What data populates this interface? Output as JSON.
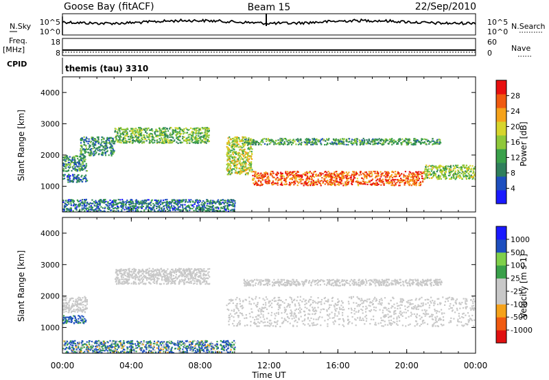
{
  "header": {
    "station": "Goose Bay (fitACF)",
    "beam": "Beam 15",
    "date": "22/Sep/2010",
    "cpid_label": "CPID",
    "cpid_value": "themis (tau) 3310"
  },
  "strip": {
    "nsky_label": "N.Sky",
    "nsearch_label": "N.Search",
    "nsky_ticks": [
      "10^5",
      "10^0"
    ],
    "nsearch_ticks": [
      "10^5",
      "10^0"
    ],
    "freq_label_1": "Freq.",
    "freq_label_2": "[MHz]",
    "freq_ticks": [
      "18",
      "8"
    ],
    "nave_label": "Nave",
    "nave_ticks": [
      "60",
      "0"
    ]
  },
  "colors": {
    "power_scale": [
      "#1a1aff",
      "#1e4fbf",
      "#2f7f5c",
      "#3aa04a",
      "#8fc83a",
      "#d7d52c",
      "#f5a21a",
      "#f05a10",
      "#e81010"
    ],
    "velocity_scale": [
      "#e01010",
      "#f05a10",
      "#f5a21a",
      "#c8c8c8",
      "#c8c8c8",
      "#3aa04a",
      "#7fd04a",
      "#1e4fbf",
      "#1a1aff"
    ],
    "ground_scatter": "#c8c8c8"
  },
  "chart_data": [
    {
      "type": "heatmap",
      "title": "",
      "xlabel": "Time UT",
      "ylabel": "Slant Range [km]",
      "x_range": [
        "00:00",
        "24:00"
      ],
      "x_ticks": [
        "00:00",
        "04:00",
        "08:00",
        "12:00",
        "16:00",
        "20:00",
        "00:00"
      ],
      "y_range": [
        180,
        4500
      ],
      "y_ticks": [
        1000,
        2000,
        3000,
        4000
      ],
      "colorbar": {
        "label": "Power [dB]",
        "range": [
          0,
          32
        ],
        "ticks": [
          4,
          8,
          12,
          16,
          20,
          24,
          28
        ]
      },
      "echo_regions": [
        {
          "t_start": 0.0,
          "t_end": 1.4,
          "r_min": 1500,
          "r_max": 2000,
          "level_db": 10
        },
        {
          "t_start": 0.0,
          "t_end": 1.4,
          "r_min": 1150,
          "r_max": 1400,
          "level_db": 8
        },
        {
          "t_start": 1.0,
          "t_end": 3.0,
          "r_min": 2000,
          "r_max": 2600,
          "level_db": 10
        },
        {
          "t_start": 3.0,
          "t_end": 8.5,
          "r_min": 2400,
          "r_max": 2900,
          "level_db": 14
        },
        {
          "t_start": 9.5,
          "t_end": 11.0,
          "r_min": 1400,
          "r_max": 2600,
          "level_db": 18
        },
        {
          "t_start": 11.0,
          "t_end": 21.0,
          "r_min": 1050,
          "r_max": 1500,
          "level_db": 27
        },
        {
          "t_start": 21.0,
          "t_end": 24.0,
          "r_min": 1250,
          "r_max": 1700,
          "level_db": 16
        },
        {
          "t_start": 10.5,
          "t_end": 22.0,
          "r_min": 2350,
          "r_max": 2550,
          "level_db": 12
        },
        {
          "t_start": 0.0,
          "t_end": 10.0,
          "r_min": 200,
          "r_max": 600,
          "level_db": 8
        }
      ]
    },
    {
      "type": "heatmap",
      "title": "",
      "xlabel": "Time UT",
      "ylabel": "Slant Range [km]",
      "x_range": [
        "00:00",
        "24:00"
      ],
      "x_ticks": [
        "00:00",
        "04:00",
        "08:00",
        "12:00",
        "16:00",
        "20:00",
        "00:00"
      ],
      "y_range": [
        180,
        4500
      ],
      "y_ticks": [
        1000,
        2000,
        3000,
        4000
      ],
      "colorbar": {
        "label": "Velocity [m s-1]",
        "labels": [
          "1000",
          "500",
          "100",
          "25",
          "-25",
          "-100",
          "-500",
          "-1000"
        ]
      },
      "echo_regions": [
        {
          "t_start": 0.0,
          "t_end": 1.4,
          "r_min": 1500,
          "r_max": 2000,
          "velocity": 0
        },
        {
          "t_start": 0.0,
          "t_end": 1.4,
          "r_min": 1150,
          "r_max": 1400,
          "velocity": 150
        },
        {
          "t_start": 3.0,
          "t_end": 8.5,
          "r_min": 2400,
          "r_max": 2900,
          "velocity": 0
        },
        {
          "t_start": 9.5,
          "t_end": 24.0,
          "r_min": 1050,
          "r_max": 2000,
          "velocity": 0
        },
        {
          "t_start": 10.5,
          "t_end": 22.0,
          "r_min": 2350,
          "r_max": 2550,
          "velocity": 0
        },
        {
          "t_start": 0.0,
          "t_end": 10.0,
          "r_min": 200,
          "r_max": 600,
          "velocity": 80
        }
      ]
    }
  ]
}
